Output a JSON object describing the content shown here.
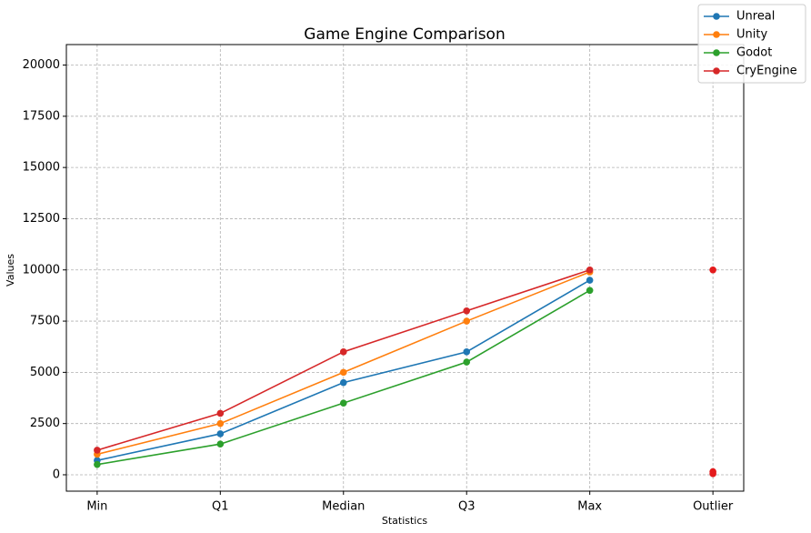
{
  "chart_data": {
    "type": "line",
    "title": "Game Engine Comparison",
    "x_label": "Statistics",
    "y_label": "Values",
    "categories": [
      "Min",
      "Q1",
      "Median",
      "Q3",
      "Max",
      "Outlier"
    ],
    "series": [
      {
        "name": "Unreal",
        "color": "#1f77b4",
        "values": [
          700,
          2000,
          4500,
          6000,
          9500,
          null
        ]
      },
      {
        "name": "Unity",
        "color": "#ff7f0e",
        "values": [
          1000,
          2500,
          5000,
          7500,
          9900,
          null
        ]
      },
      {
        "name": "Godot",
        "color": "#2ca02c",
        "values": [
          500,
          1500,
          3500,
          5500,
          9000,
          null
        ]
      },
      {
        "name": "CryEngine",
        "color": "#d62728",
        "values": [
          1200,
          3000,
          6000,
          8000,
          10000,
          null
        ]
      }
    ],
    "outliers": {
      "color": "#e41a1c",
      "values": [
        10000,
        150,
        50
      ]
    },
    "ylim": [
      -800,
      21000
    ],
    "yticks": [
      0,
      2500,
      5000,
      7500,
      10000,
      12500,
      15000,
      17500,
      20000
    ],
    "grid": true,
    "legend": "upper right"
  }
}
